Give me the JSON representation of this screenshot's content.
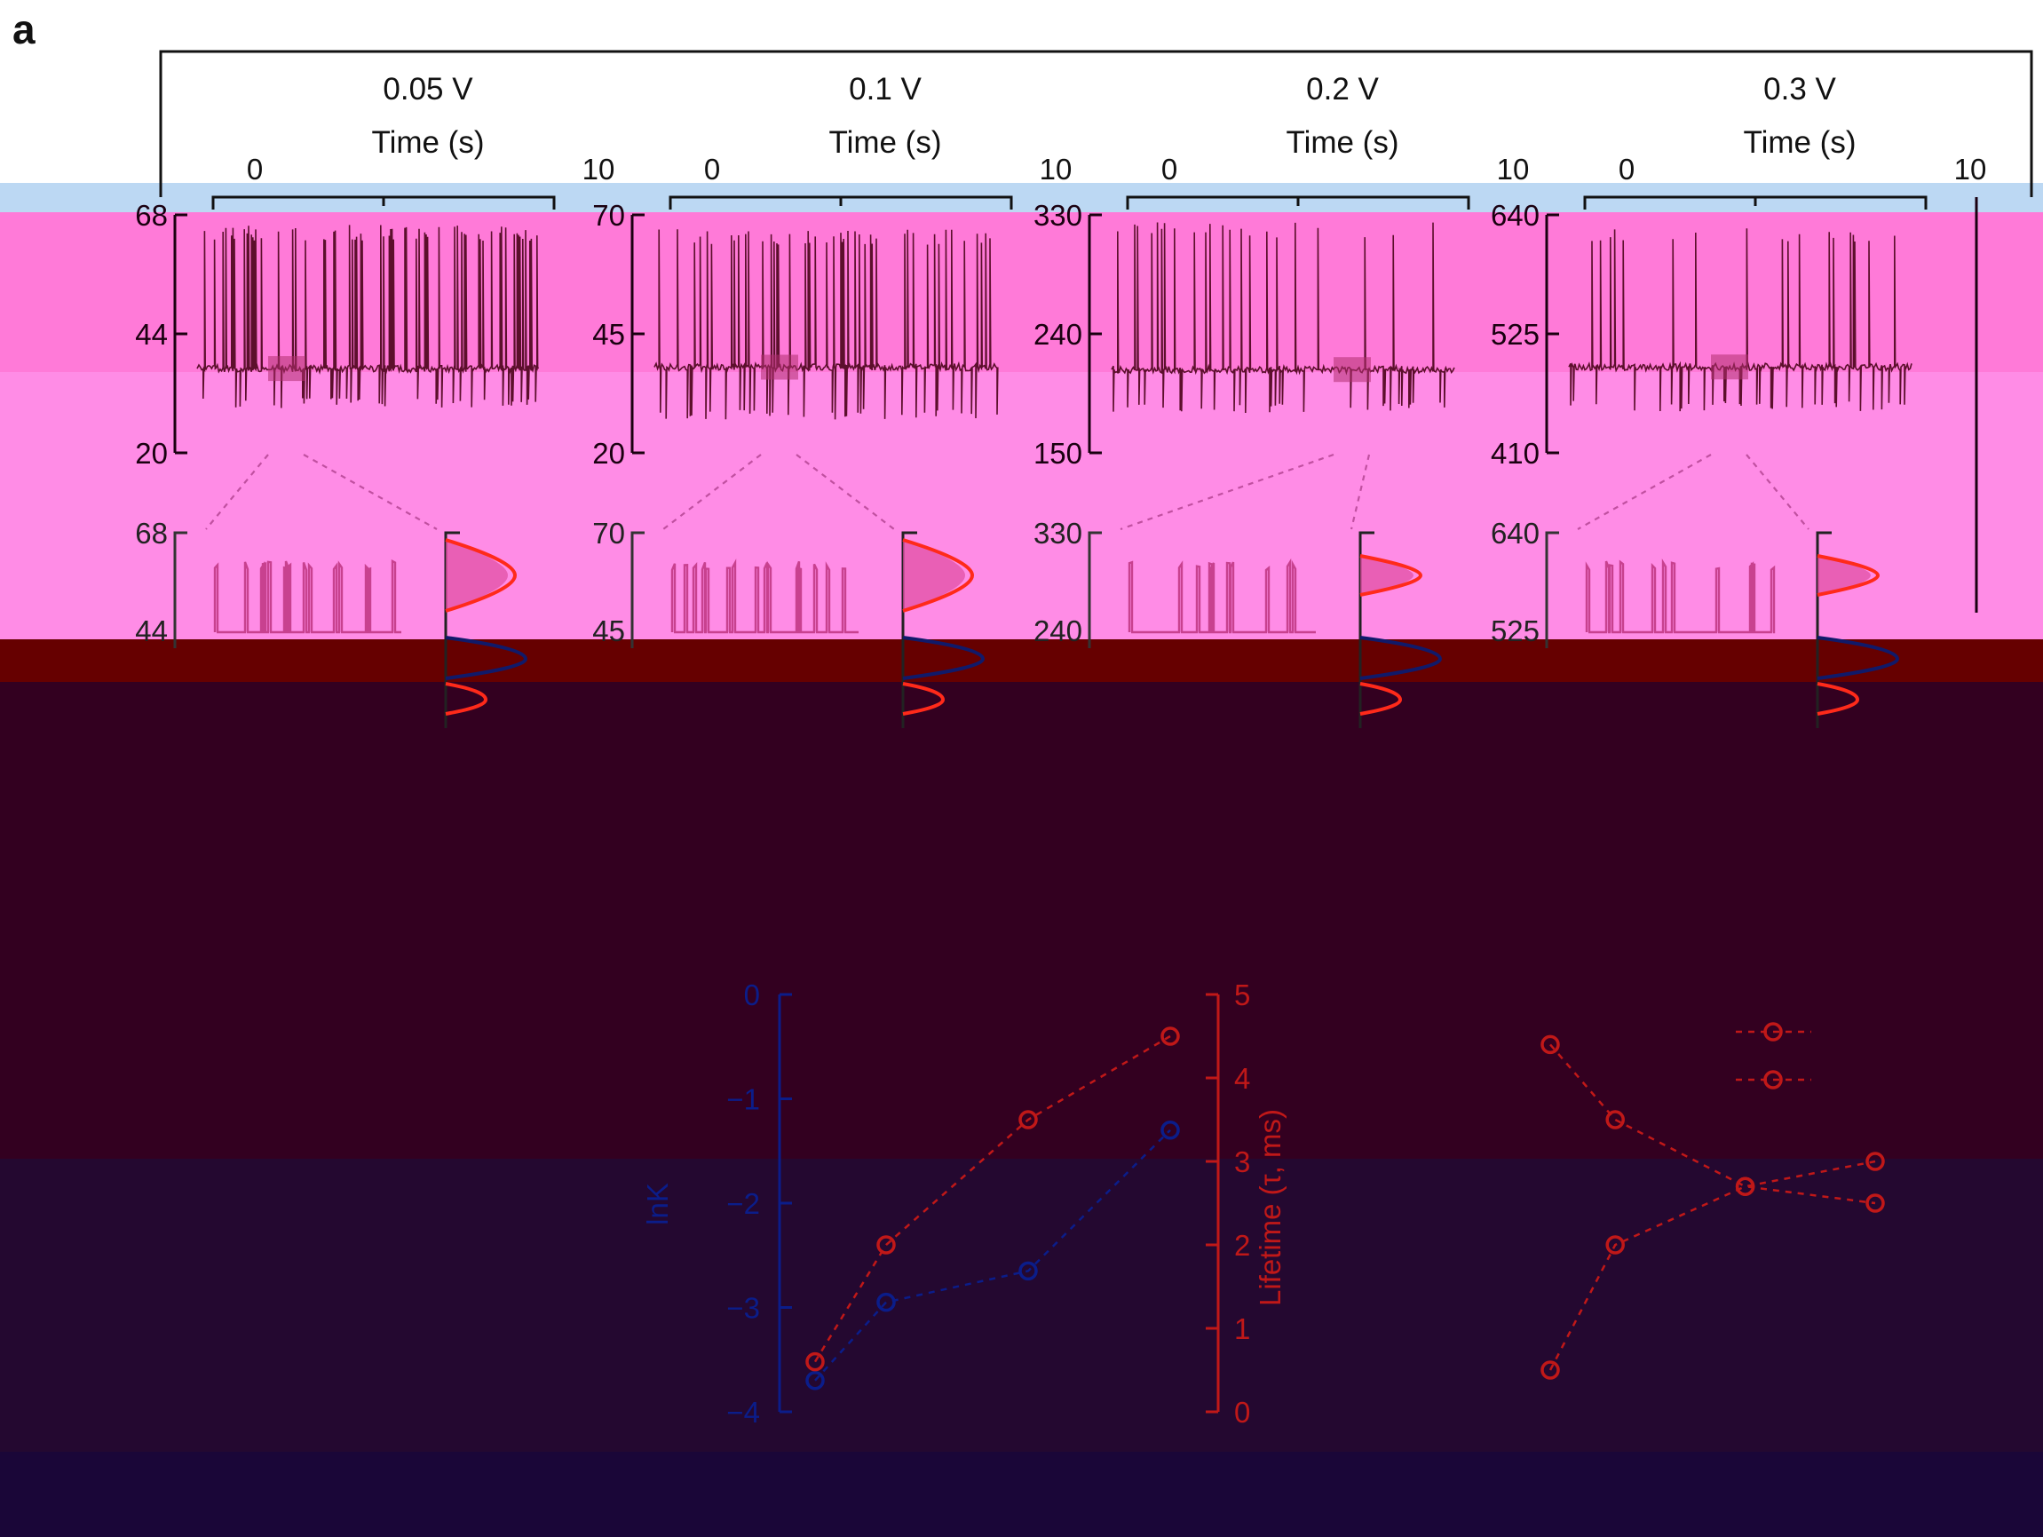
{
  "panel_label": "a",
  "colors": {
    "trace": "#5c0f2c",
    "zoom_trace": "#c8418f",
    "fit_red": "#ff2a1a",
    "fit_blue": "#101a6a",
    "lnk_series": "#0b1d8a",
    "lifetime_series": "#c01818",
    "arrow": "#c050a0",
    "axis_dark": "#1a0010"
  },
  "chart_data": [
    {
      "type": "line",
      "title": "0.05 V",
      "xlabel": "Time (s)",
      "xticks": [
        "0",
        "10"
      ],
      "ylim": [
        20,
        68
      ],
      "yticks": [
        "68",
        "44",
        "20"
      ],
      "zoom_yticks": [
        "68",
        "44"
      ],
      "baseline_level": 37,
      "upper_level": 66,
      "lower_level": 29
    },
    {
      "type": "line",
      "title": "0.1 V",
      "xlabel": "Time (s)",
      "xticks": [
        "0",
        "10"
      ],
      "ylim": [
        20,
        70
      ],
      "yticks": [
        "70",
        "45",
        "20"
      ],
      "zoom_yticks": [
        "70",
        "45"
      ],
      "baseline_level": 38,
      "upper_level": 67,
      "lower_level": 27
    },
    {
      "type": "line",
      "title": "0.2 V",
      "xlabel": "Time (s)",
      "xticks": [
        "0",
        "10"
      ],
      "ylim": [
        150,
        330
      ],
      "yticks": [
        "330",
        "240",
        "150"
      ],
      "zoom_yticks": [
        "330",
        "240"
      ],
      "baseline_level": 213,
      "upper_level": 325,
      "lower_level": 180
    },
    {
      "type": "line",
      "title": "0.3 V",
      "xlabel": "Time (s)",
      "xticks": [
        "0",
        "10"
      ],
      "ylim": [
        410,
        640
      ],
      "yticks": [
        "640",
        "525",
        "410"
      ],
      "zoom_yticks": [
        "640",
        "525"
      ],
      "baseline_level": 493,
      "upper_level": 628,
      "lower_level": 450
    },
    {
      "type": "scatter",
      "y_left_label": "lnK",
      "y_right_label": "Lifetime (τ, ms)",
      "y_left_ticks": [
        "0",
        "−1",
        "−2",
        "−3",
        "−4"
      ],
      "y_right_ticks": [
        "5",
        "4",
        "3",
        "2",
        "1",
        "0"
      ],
      "ylim_left": [
        -4,
        0
      ],
      "ylim_right": [
        0,
        5
      ],
      "x": [
        0.05,
        0.1,
        0.2,
        0.3
      ],
      "series": [
        {
          "axis": "left",
          "values": [
            -3.7,
            -2.95,
            -2.65,
            -1.3
          ]
        },
        {
          "axis": "right",
          "values": [
            0.6,
            2.0,
            3.5,
            4.5
          ]
        }
      ]
    },
    {
      "type": "line",
      "x": [
        0.05,
        0.1,
        0.2,
        0.3
      ],
      "ylim": [
        0,
        5
      ],
      "series": [
        {
          "values": [
            0.5,
            2.0,
            2.7,
            3.0
          ]
        },
        {
          "values": [
            4.4,
            3.5,
            2.7,
            2.5
          ]
        }
      ]
    }
  ]
}
